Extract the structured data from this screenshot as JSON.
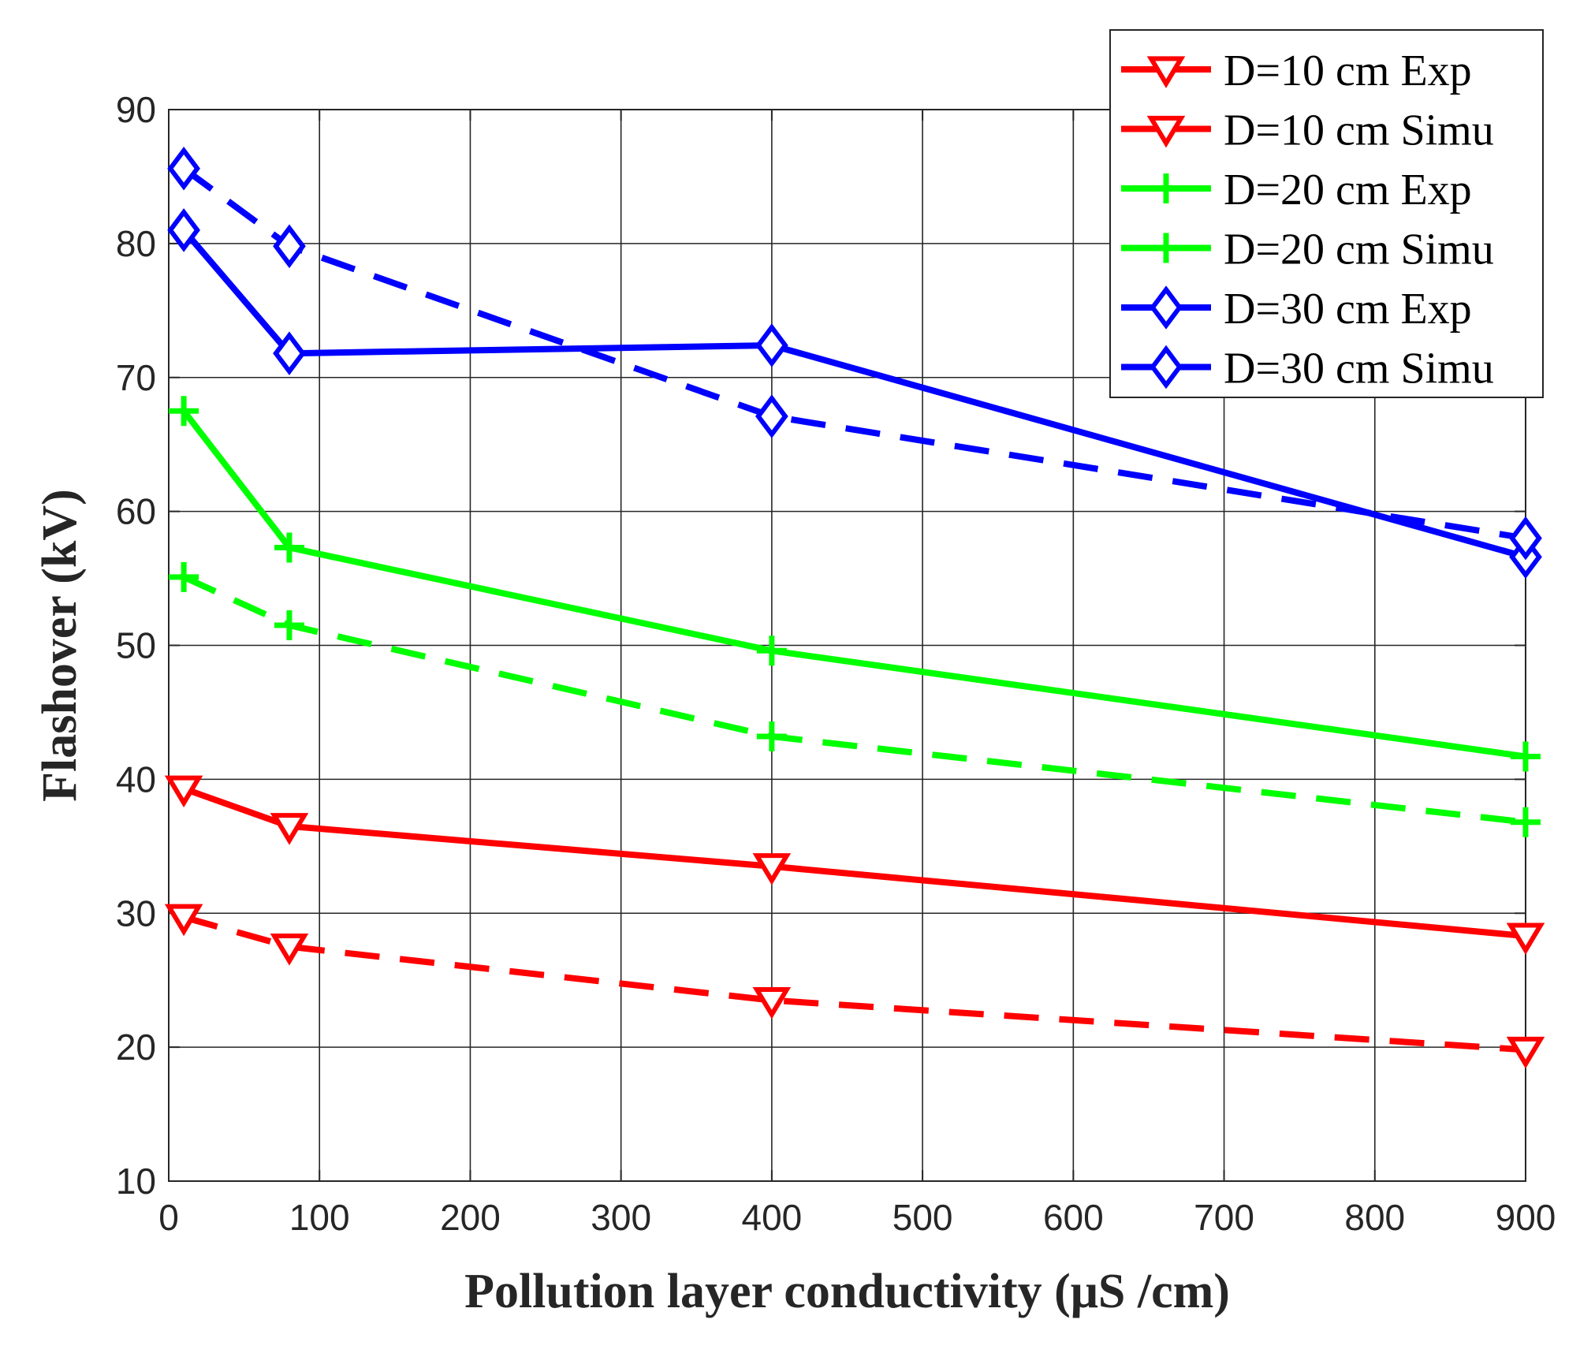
{
  "chart_data": {
    "type": "line",
    "title": "",
    "xlabel": "Pollution layer conductivity  (μS /cm)",
    "ylabel": "Flashover (kV)",
    "xlim": [
      0,
      900
    ],
    "ylim": [
      10,
      90
    ],
    "xticks": [
      0,
      100,
      200,
      300,
      400,
      500,
      600,
      700,
      800,
      900
    ],
    "yticks": [
      10,
      20,
      30,
      40,
      50,
      60,
      70,
      80,
      90
    ],
    "xtick_labels": [
      "0",
      "100",
      "200",
      "300",
      "400",
      "500",
      "600",
      "700",
      "800",
      "900"
    ],
    "ytick_labels": [
      "10",
      "20",
      "30",
      "40",
      "50",
      "60",
      "70",
      "80",
      "90"
    ],
    "grid": true,
    "legend_position": "top-right",
    "series": [
      {
        "name": "D=10 cm Exp",
        "color": "#ff0000",
        "dash": "solid",
        "marker": "triangle-down",
        "x": [
          10,
          80,
          400,
          900
        ],
        "y": [
          39.3,
          36.5,
          33.5,
          28.3
        ]
      },
      {
        "name": "D=10 cm Simu",
        "color": "#ff0000",
        "dash": "dashed",
        "marker": "triangle-down",
        "x": [
          10,
          80,
          400,
          900
        ],
        "y": [
          29.7,
          27.5,
          23.5,
          19.8
        ]
      },
      {
        "name": "D=20 cm Exp",
        "color": "#00ff00",
        "dash": "solid",
        "marker": "plus",
        "x": [
          10,
          80,
          400,
          900
        ],
        "y": [
          67.5,
          57.3,
          49.6,
          41.7
        ]
      },
      {
        "name": "D=20 cm Simu",
        "color": "#00ff00",
        "dash": "dashed",
        "marker": "plus",
        "x": [
          10,
          80,
          400,
          900
        ],
        "y": [
          55.1,
          51.5,
          43.2,
          36.8
        ]
      },
      {
        "name": "D=30 cm Exp",
        "color": "#0000ff",
        "dash": "solid",
        "marker": "diamond",
        "x": [
          10,
          80,
          400,
          900
        ],
        "y": [
          81.0,
          71.8,
          72.4,
          56.6
        ]
      },
      {
        "name": "D=30 cm Simu",
        "color": "#0000ff",
        "dash": "dashed",
        "marker": "diamond",
        "x": [
          10,
          80,
          400,
          900
        ],
        "y": [
          85.6,
          79.8,
          67.1,
          58.0
        ]
      }
    ]
  }
}
